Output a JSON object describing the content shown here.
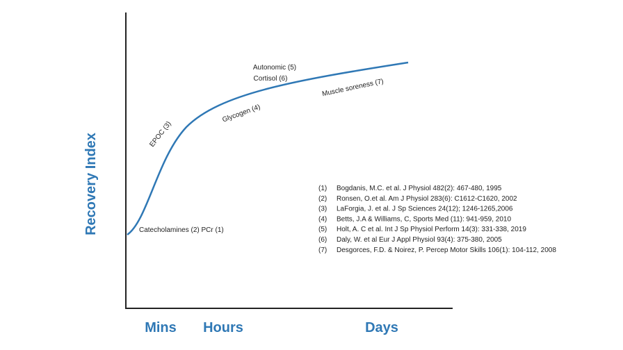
{
  "axes": {
    "y_label": "Recovery Index",
    "x_labels": [
      "Mins",
      "Hours",
      "Days"
    ]
  },
  "annotations": [
    {
      "label": "Catecholamines (2) PCr (1)"
    },
    {
      "label": "EPOC (3)"
    },
    {
      "label": "Glycogen (4)"
    },
    {
      "label": "Autonomic (5)"
    },
    {
      "label": "Cortisol (6)"
    },
    {
      "label": "Muscle soreness (7)"
    }
  ],
  "references": [
    {
      "number": "(1)",
      "text": "Bogdanis, M.C. et al. J Physiol 482(2): 467-480, 1995"
    },
    {
      "number": "(2)",
      "text": "Ronsen, O.et al. Am J Physiol 283(6): C1612-C1620, 2002"
    },
    {
      "number": "(3)",
      "text": "LaForgia, J. et al. J Sp Sciences 24(12); 1246-1265,2006"
    },
    {
      "number": "(4)",
      "text": "Betts, J.A & Williams, C, Sports Med (11): 941-959, 2010"
    },
    {
      "number": "(5)",
      "text": "Holt, A. C et al. Int J Sp Physiol Perform 14(3): 331-338, 2019"
    },
    {
      "number": "(6)",
      "text": "Daly, W. et al Eur J Appl Physiol 93(4): 375-380, 2005"
    },
    {
      "number": "(7)",
      "text": "Desgorces, F.D. & Noirez, P. Percep Motor Skills 106(1): 104-112, 2008"
    }
  ]
}
